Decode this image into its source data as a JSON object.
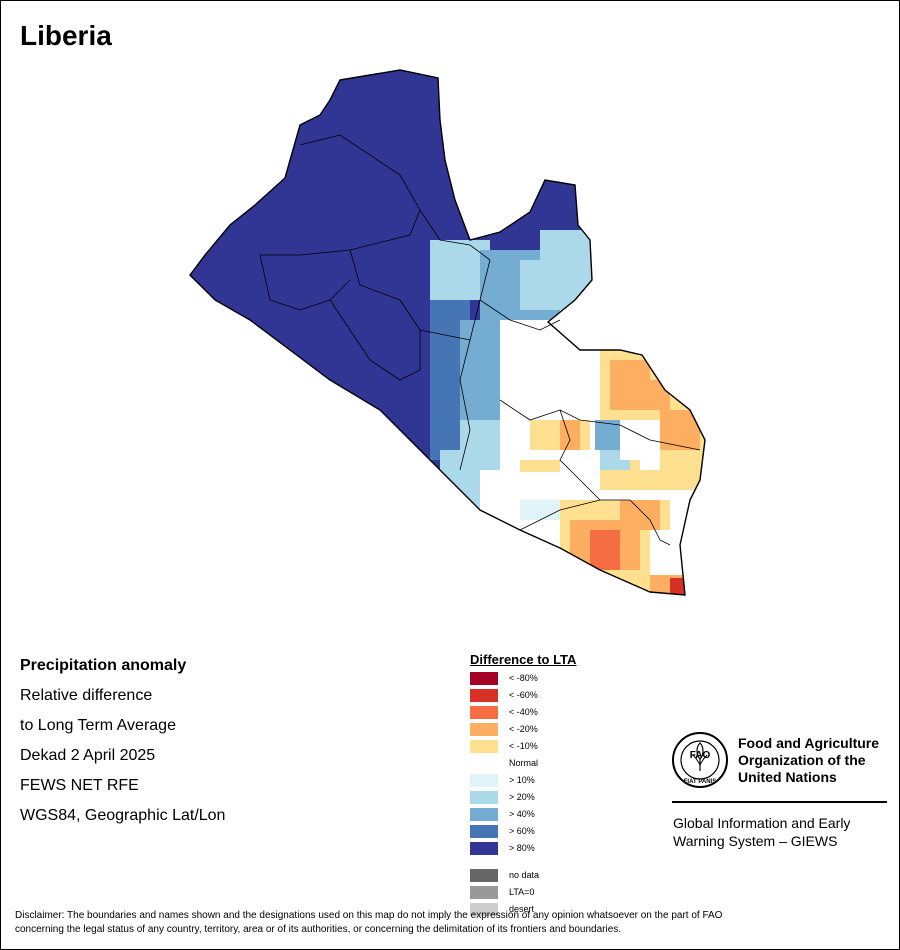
{
  "title": "Liberia",
  "info": {
    "heading": "Precipitation anomaly",
    "line1": "Relative difference",
    "line2": "to Long Term Average",
    "line3": "Dekad 2 April 2025",
    "line4": "FEWS NET RFE",
    "line5": "WGS84, Geographic Lat/Lon"
  },
  "legend": {
    "title": "Difference to LTA",
    "items": [
      {
        "label": "< -80%",
        "color": "#a50026"
      },
      {
        "label": "< -60%",
        "color": "#d73027"
      },
      {
        "label": "< -40%",
        "color": "#f46d43"
      },
      {
        "label": "< -20%",
        "color": "#fdae61"
      },
      {
        "label": "< -10%",
        "color": "#fee090"
      },
      {
        "label": "Normal",
        "color": "#ffffff"
      },
      {
        "label": "> 10%",
        "color": "#e0f3f8"
      },
      {
        "label": "> 20%",
        "color": "#abd9e9"
      },
      {
        "label": "> 40%",
        "color": "#74add1"
      },
      {
        "label": "> 60%",
        "color": "#4575b4"
      },
      {
        "label": "> 80%",
        "color": "#313695"
      }
    ],
    "extra": [
      {
        "label": "no data",
        "color": "#666666"
      },
      {
        "label": "LTA=0",
        "color": "#999999"
      },
      {
        "label": "desert",
        "color": "#cccccc"
      }
    ]
  },
  "fao": {
    "logo_text": "FAO",
    "logo_motto": "FIAT PANIS",
    "name_line1": "Food and Agriculture",
    "name_line2": "Organization of the",
    "name_line3": "United Nations",
    "giews_line1": "Global Information and Early",
    "giews_line2": "Warning System – GIEWS"
  },
  "disclaimer_line1": "Disclaimer: The boundaries and names shown and the designations used on this map do not imply the expression of any opinion whatsoever on the part of FAO",
  "disclaimer_line2": "concerning the legal status of any country, territory, area or of its authorities, or concerning the delimitation of its frontiers and boundaries."
}
